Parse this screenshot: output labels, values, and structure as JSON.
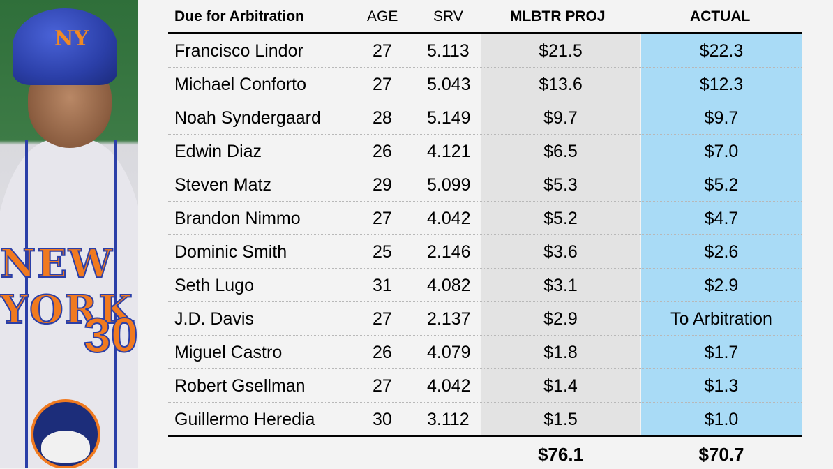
{
  "header": {
    "name": "Due for Arbitration",
    "age": "AGE",
    "srv": "SRV",
    "proj": "MLBTR PROJ",
    "actual": "ACTUAL"
  },
  "rows": [
    {
      "name": "Francisco Lindor",
      "age": "27",
      "srv": "5.113",
      "proj": "$21.5",
      "actual": "$22.3"
    },
    {
      "name": "Michael Conforto",
      "age": "27",
      "srv": "5.043",
      "proj": "$13.6",
      "actual": "$12.3"
    },
    {
      "name": "Noah Syndergaard",
      "age": "28",
      "srv": "5.149",
      "proj": "$9.7",
      "actual": "$9.7"
    },
    {
      "name": "Edwin Diaz",
      "age": "26",
      "srv": "4.121",
      "proj": "$6.5",
      "actual": "$7.0"
    },
    {
      "name": "Steven Matz",
      "age": "29",
      "srv": "5.099",
      "proj": "$5.3",
      "actual": "$5.2"
    },
    {
      "name": "Brandon Nimmo",
      "age": "27",
      "srv": "4.042",
      "proj": "$5.2",
      "actual": "$4.7"
    },
    {
      "name": "Dominic Smith",
      "age": "25",
      "srv": "2.146",
      "proj": "$3.6",
      "actual": "$2.6"
    },
    {
      "name": "Seth Lugo",
      "age": "31",
      "srv": "4.082",
      "proj": "$3.1",
      "actual": "$2.9"
    },
    {
      "name": "J.D. Davis",
      "age": "27",
      "srv": "2.137",
      "proj": "$2.9",
      "actual": "To Arbitration"
    },
    {
      "name": "Miguel Castro",
      "age": "26",
      "srv": "4.079",
      "proj": "$1.8",
      "actual": "$1.7"
    },
    {
      "name": "Robert Gsellman",
      "age": "27",
      "srv": "4.042",
      "proj": "$1.4",
      "actual": "$1.3"
    },
    {
      "name": "Guillermo Heredia",
      "age": "30",
      "srv": "3.112",
      "proj": "$1.5",
      "actual": "$1.0"
    }
  ],
  "totals": {
    "proj": "$76.1",
    "actual": "$70.7"
  },
  "photo": {
    "helmet_logo": "NY",
    "jersey_text": "NEW YORK",
    "jersey_number": "30"
  },
  "colors": {
    "actual_column": "#a9dbf6",
    "proj_column": "#e3e3e3",
    "background": "#f3f3f3"
  }
}
